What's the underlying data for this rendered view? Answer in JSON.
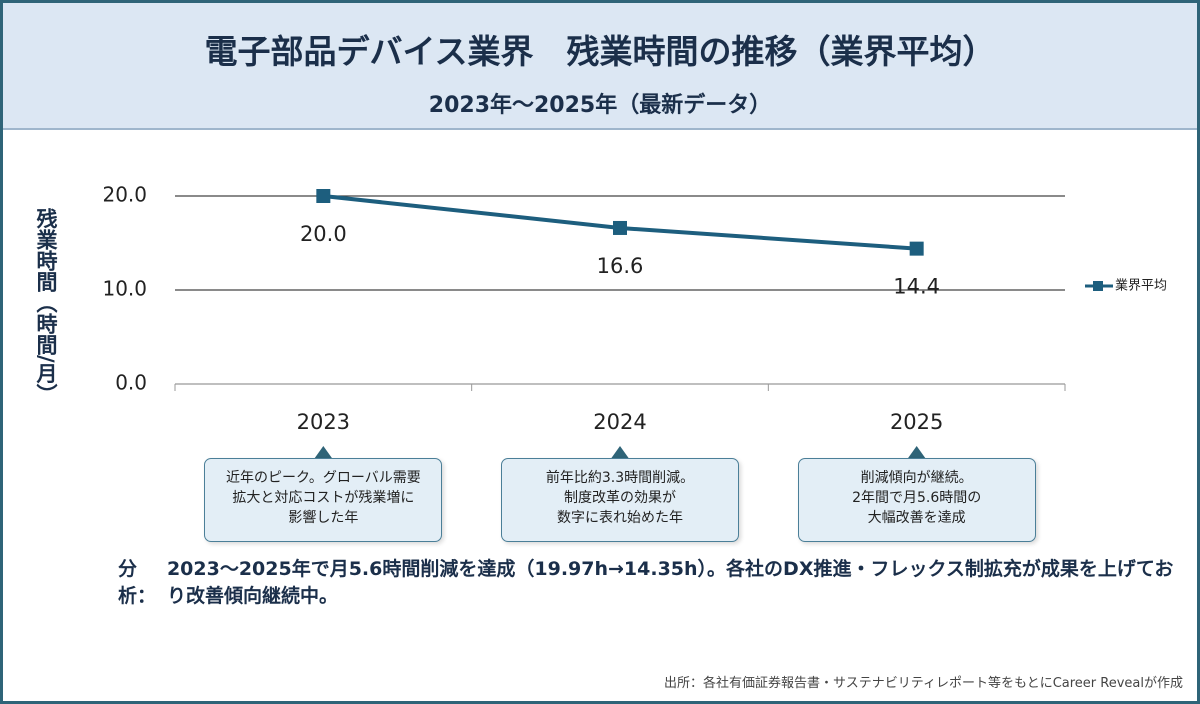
{
  "chart_data": {
    "type": "line",
    "title": "電子部品デバイス業界　残業時間の推移（業界平均）",
    "subtitle": "2023年〜2025年（最新データ）",
    "y_label": "残業時間（時間/月）",
    "categories": [
      "2023",
      "2024",
      "2025"
    ],
    "series": [
      {
        "name": "業界平均",
        "color": "#1d5e7e",
        "values": [
          20.0,
          16.6,
          14.4
        ],
        "value_labels": [
          "20.0",
          "16.6",
          "14.4"
        ]
      }
    ],
    "ylim": [
      0,
      20
    ],
    "yticks": [
      {
        "value": 0,
        "label": "0.0"
      },
      {
        "value": 10,
        "label": "10.0"
      },
      {
        "value": 20,
        "label": "20.0"
      }
    ],
    "grid": true,
    "legend": "right",
    "callouts": [
      [
        "近年のピーク。グローバル需要",
        "拡大と対応コストが残業増に",
        "影響した年"
      ],
      [
        "前年比約3.3時間削減。",
        "制度改革の効果が",
        "数字に表れ始めた年"
      ],
      [
        "削減傾向が継続。",
        "2年間で月5.6時間の",
        "大幅改善を達成"
      ]
    ],
    "analysis_label": "分析：",
    "analysis": "2023〜2025年で月5.6時間削減を達成（19.97h→14.35h）。各社のDX推進・フレックス制拡充が成果を上げており改善傾向継続中。",
    "source": "出所：各社有価証券報告書・サステナビリティレポート等をもとにCareer Revealが作成"
  }
}
